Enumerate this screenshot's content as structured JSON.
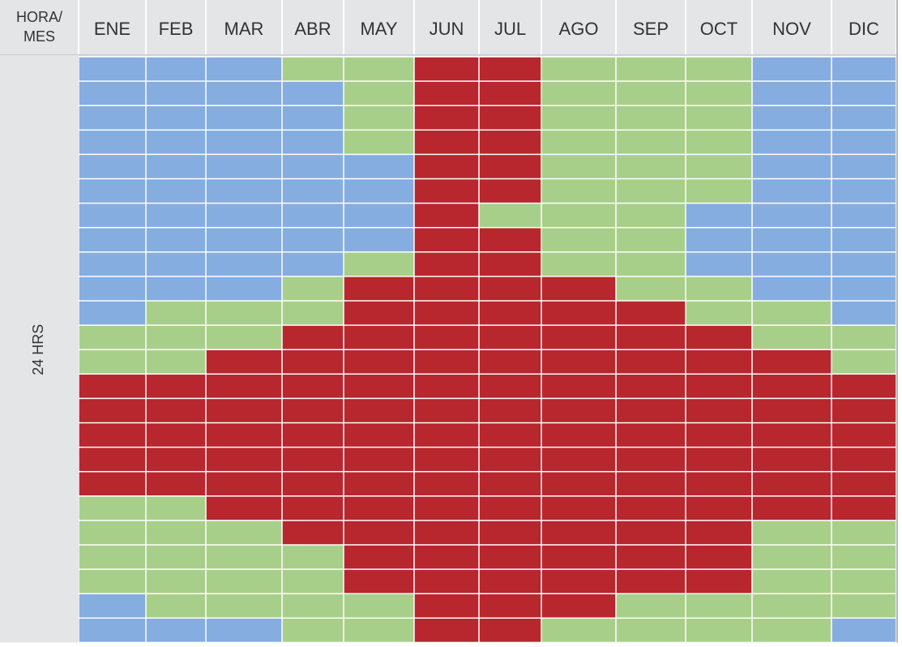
{
  "chart_data": {
    "type": "heatmap",
    "corner_label_lines": [
      "HORA/",
      "MES"
    ],
    "row_group_label": "24 HRS",
    "months": [
      "ENE",
      "FEB",
      "MAR",
      "ABR",
      "MAY",
      "JUN",
      "JUL",
      "AGO",
      "SEP",
      "OCT",
      "NOV",
      "DIC"
    ],
    "level_colors": {
      "B": "#86ade0",
      "G": "#a8cf8a",
      "R": "#b8262e"
    },
    "rows": [
      "BBBGGRRGGGBB",
      "BBBBGRRGGGBB",
      "BBBBGRRGGGBB",
      "BBBBGRRGGGBB",
      "BBBBBRRGGGBB",
      "BBBBBRRGGGBB",
      "BBBBBRGGGBBB",
      "BBBBBRRGGBBB",
      "BBBBGRRGGBBB",
      "BBBGRRRRGGBB",
      "BGGGRRRRRGGB",
      "GGGRRRRRRRGG",
      "GGRRRRRRRRRG",
      "RRRRRRRRRRRR",
      "RRRRRRRRRRRR",
      "RRRRRRRRRRRR",
      "RRRRRRRRRRRR",
      "RRRRRRRRRRRR",
      "GGRRRRRRRRRR",
      "GGGRRRRRRRGG",
      "GGGGRRRRRRGG",
      "GGGGRRRRRRGG",
      "BGGGGRRRGGGG",
      "BBBGGRRGGGGB"
    ],
    "grid": true,
    "legend": "none"
  }
}
